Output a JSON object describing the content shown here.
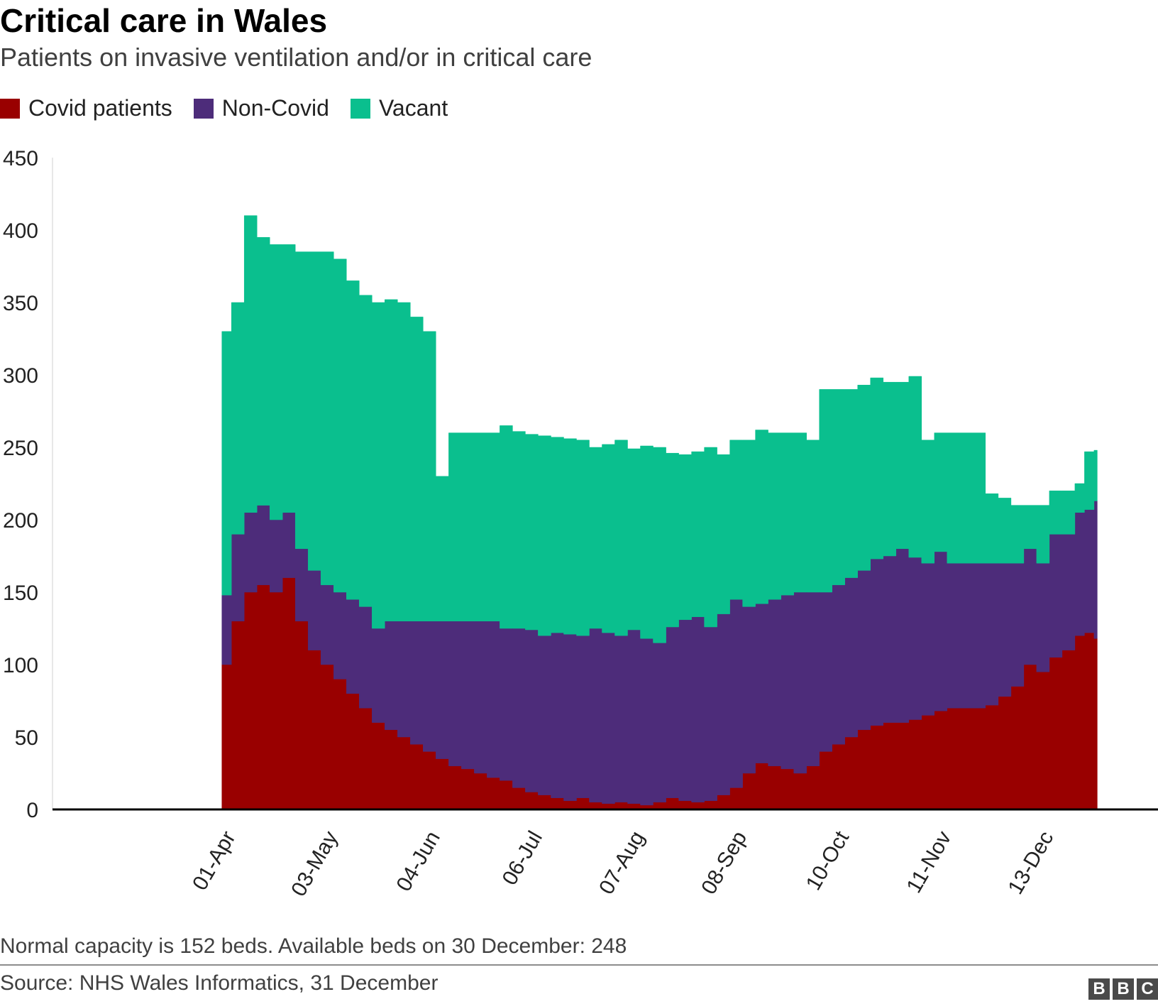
{
  "header": {
    "title": "Critical care in Wales",
    "subtitle": "Patients on invasive ventilation and/or in critical care"
  },
  "legend": [
    {
      "label": "Covid patients",
      "color": "#990000"
    },
    {
      "label": "Non-Covid",
      "color": "#4d2c7a"
    },
    {
      "label": "Vacant",
      "color": "#0abf8e"
    }
  ],
  "footer": {
    "note": "Normal capacity is 152 beds. Available beds on 30 December: 248",
    "source": "Source: NHS Wales Informatics, 31 December",
    "logo_letters": [
      "B",
      "B",
      "C"
    ]
  },
  "chart_data": {
    "type": "area",
    "stacked": true,
    "ylim": [
      0,
      450
    ],
    "yticks": [
      0,
      50,
      100,
      150,
      200,
      250,
      300,
      350,
      400,
      450
    ],
    "xlim": [
      "2020-02-08",
      "2021-01-19"
    ],
    "xticks": [
      "01-Apr",
      "03-May",
      "04-Jun",
      "06-Jul",
      "07-Aug",
      "08-Sep",
      "10-Oct",
      "11-Nov",
      "13-Dec"
    ],
    "xtick_dates": [
      "2020-04-01",
      "2020-05-03",
      "2020-06-04",
      "2020-07-06",
      "2020-08-07",
      "2020-09-08",
      "2020-10-10",
      "2020-11-11",
      "2020-12-13"
    ],
    "grid": false,
    "legend_position": "top-left",
    "x": [
      "2020-04-01",
      "2020-04-04",
      "2020-04-08",
      "2020-04-12",
      "2020-04-16",
      "2020-04-20",
      "2020-04-24",
      "2020-04-28",
      "2020-05-02",
      "2020-05-06",
      "2020-05-10",
      "2020-05-14",
      "2020-05-18",
      "2020-05-22",
      "2020-05-26",
      "2020-05-30",
      "2020-06-03",
      "2020-06-07",
      "2020-06-11",
      "2020-06-15",
      "2020-06-19",
      "2020-06-23",
      "2020-06-27",
      "2020-07-01",
      "2020-07-05",
      "2020-07-09",
      "2020-07-13",
      "2020-07-17",
      "2020-07-21",
      "2020-07-25",
      "2020-07-29",
      "2020-08-02",
      "2020-08-06",
      "2020-08-10",
      "2020-08-14",
      "2020-08-18",
      "2020-08-22",
      "2020-08-26",
      "2020-08-30",
      "2020-09-03",
      "2020-09-07",
      "2020-09-11",
      "2020-09-15",
      "2020-09-19",
      "2020-09-23",
      "2020-09-27",
      "2020-10-01",
      "2020-10-05",
      "2020-10-09",
      "2020-10-13",
      "2020-10-17",
      "2020-10-21",
      "2020-10-25",
      "2020-10-29",
      "2020-11-02",
      "2020-11-06",
      "2020-11-10",
      "2020-11-14",
      "2020-11-18",
      "2020-11-22",
      "2020-11-26",
      "2020-11-30",
      "2020-12-04",
      "2020-12-08",
      "2020-12-12",
      "2020-12-16",
      "2020-12-20",
      "2020-12-24",
      "2020-12-27",
      "2020-12-30"
    ],
    "series": [
      {
        "name": "Covid patients",
        "color": "#990000",
        "values": [
          100,
          130,
          150,
          155,
          150,
          160,
          130,
          110,
          100,
          90,
          80,
          70,
          60,
          55,
          50,
          45,
          40,
          35,
          30,
          28,
          25,
          22,
          20,
          15,
          12,
          10,
          8,
          6,
          8,
          5,
          4,
          5,
          4,
          3,
          5,
          8,
          6,
          5,
          6,
          10,
          15,
          25,
          32,
          30,
          28,
          25,
          30,
          40,
          45,
          50,
          55,
          58,
          60,
          60,
          62,
          65,
          68,
          70,
          70,
          70,
          72,
          78,
          85,
          100,
          95,
          105,
          110,
          120,
          122,
          118
        ]
      },
      {
        "name": "Non-Covid",
        "color": "#4d2c7a",
        "values": [
          48,
          60,
          55,
          55,
          50,
          45,
          50,
          55,
          55,
          60,
          65,
          70,
          65,
          75,
          80,
          85,
          90,
          95,
          100,
          102,
          105,
          108,
          105,
          110,
          112,
          110,
          114,
          115,
          112,
          120,
          118,
          115,
          120,
          115,
          110,
          118,
          125,
          128,
          120,
          125,
          130,
          115,
          110,
          115,
          120,
          125,
          120,
          110,
          110,
          110,
          110,
          115,
          115,
          120,
          112,
          105,
          110,
          100,
          100,
          100,
          98,
          92,
          85,
          80,
          75,
          85,
          80,
          85,
          85,
          95
        ]
      },
      {
        "name": "Vacant",
        "color": "#0abf8e",
        "values": [
          182,
          160,
          205,
          185,
          190,
          185,
          205,
          220,
          230,
          230,
          220,
          215,
          225,
          222,
          220,
          210,
          200,
          100,
          130,
          130,
          130,
          130,
          140,
          136,
          135,
          138,
          135,
          135,
          135,
          125,
          130,
          135,
          125,
          133,
          135,
          120,
          114,
          114,
          124,
          110,
          110,
          115,
          120,
          115,
          112,
          110,
          105,
          140,
          135,
          130,
          128,
          125,
          120,
          115,
          125,
          85,
          82,
          90,
          90,
          90,
          48,
          45,
          40,
          30,
          40,
          30,
          30,
          20,
          40,
          35
        ]
      }
    ]
  }
}
